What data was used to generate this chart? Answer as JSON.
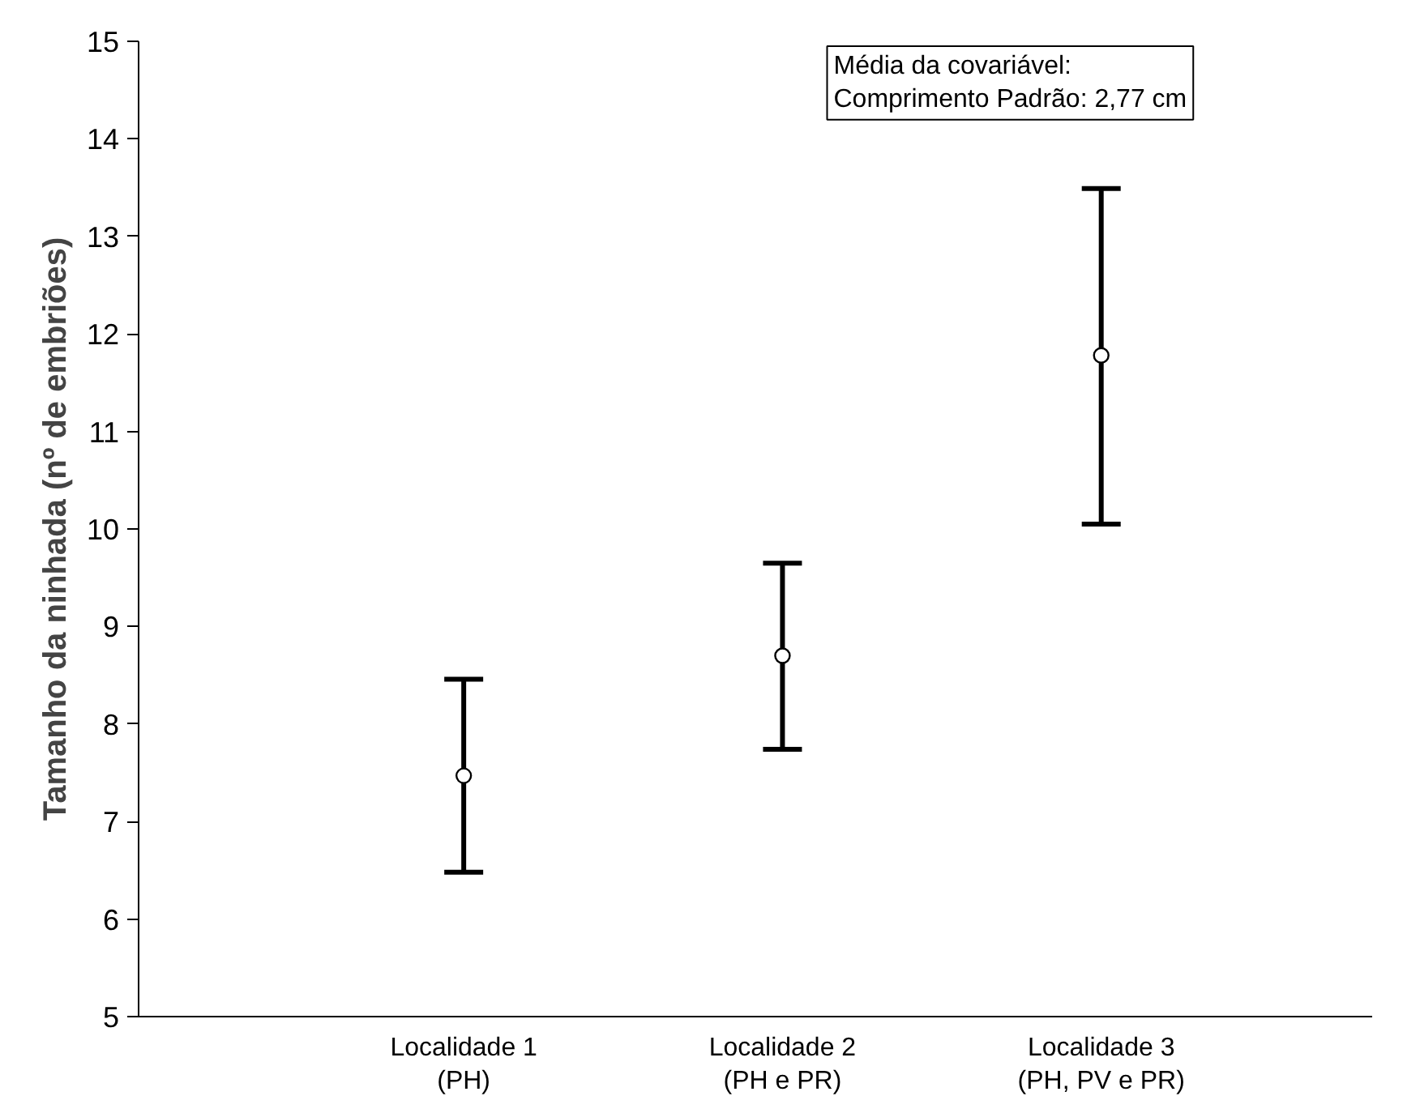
{
  "chart_data": {
    "type": "scatter",
    "ylabel": "Tamanho da ninhada (nº de embriões)",
    "categories": [
      "Localidade 1\n(PH)",
      "Localidade 2\n(PH e PR)",
      "Localidade 3\n(PH, PV e PR)"
    ],
    "series": [
      {
        "color": "#000000",
        "values": [
          7.47,
          8.7,
          11.78
        ],
        "errors": [
          [
            6.48,
            8.46
          ],
          [
            7.74,
            9.65
          ],
          [
            10.05,
            13.49
          ]
        ]
      }
    ],
    "ylim": [
      5,
      15
    ],
    "yticks": [
      5,
      6,
      7,
      8,
      9,
      10,
      11,
      12,
      13,
      14,
      15
    ],
    "marker": "circle",
    "grid": false,
    "annotations": [
      "Média da covariável:\nComprimento Padrão: 2,77 cm"
    ]
  }
}
